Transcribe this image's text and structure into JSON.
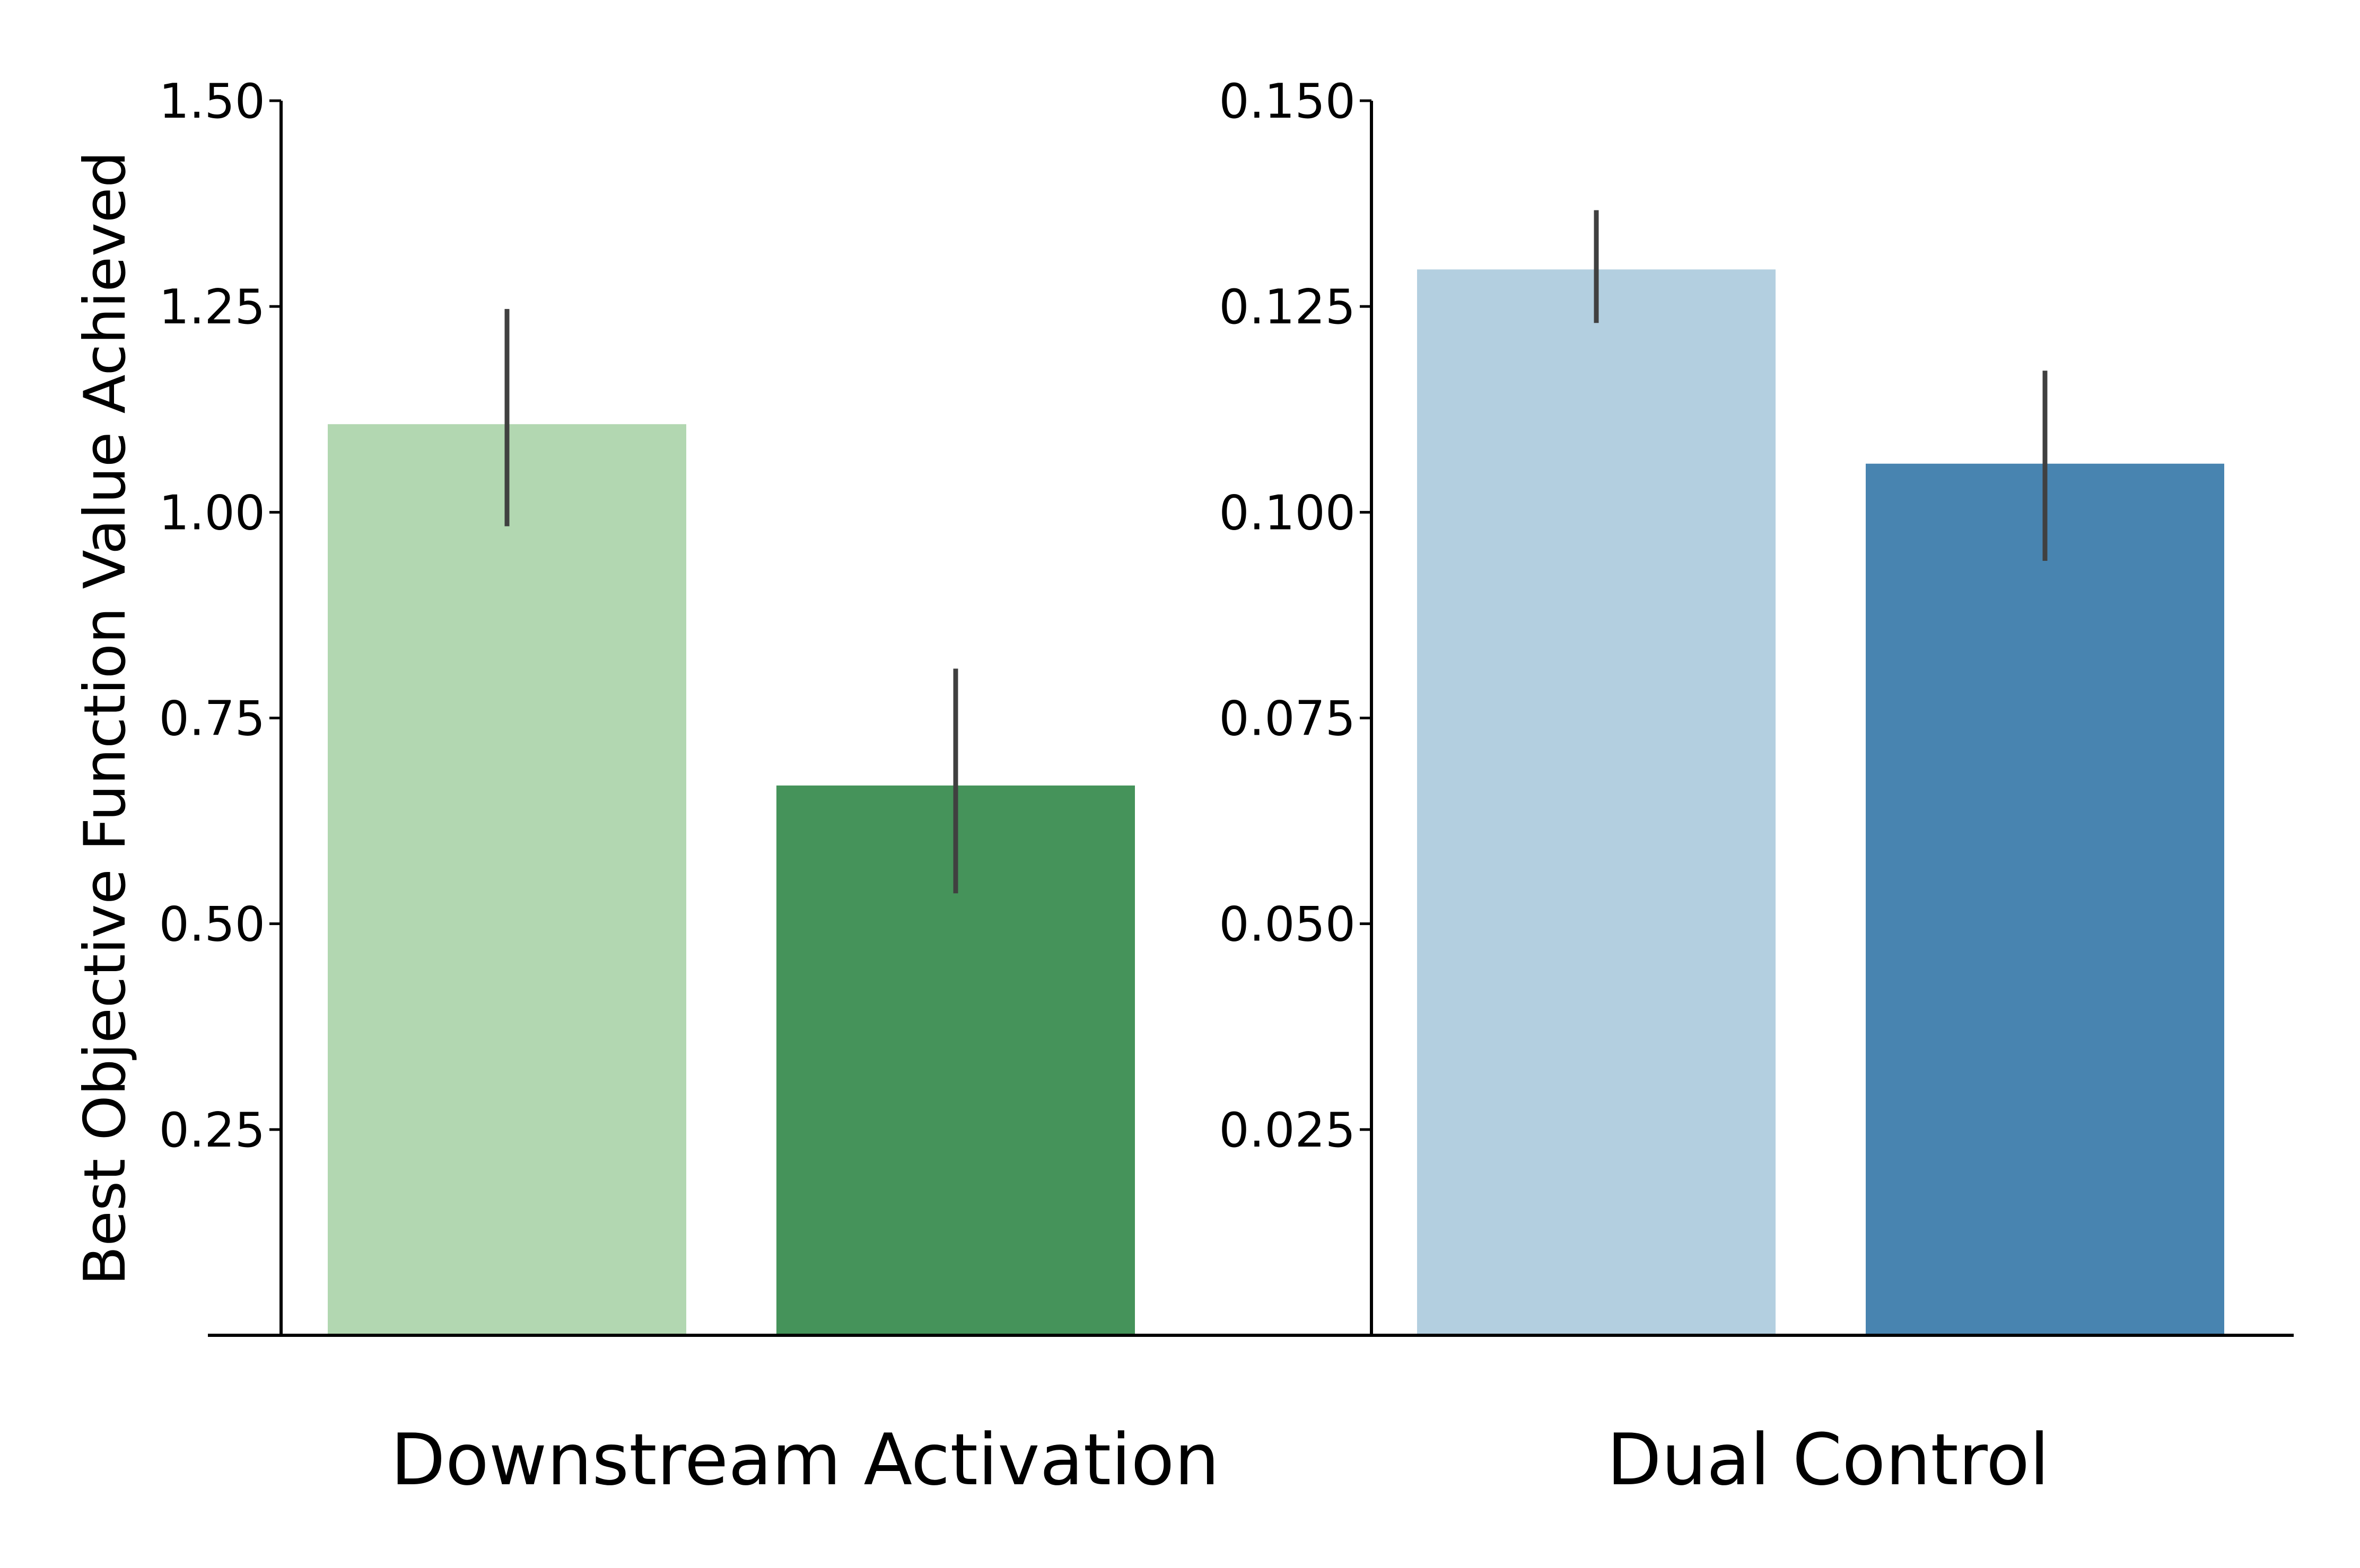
{
  "chart_data": {
    "type": "bar",
    "ylabel": "Best Objective Function Value Achieved",
    "panels": [
      {
        "group_label": "Downstream Activation",
        "ylim": [
          0,
          1.5
        ],
        "yticks": [
          0.25,
          0.5,
          0.75,
          1.0,
          1.25,
          1.5
        ],
        "ytick_labels": [
          "0.25",
          "0.50",
          "0.75",
          "1.00",
          "1.25",
          "1.50"
        ],
        "bars": [
          {
            "value": 1.107,
            "err_low": 0.983,
            "err_high": 1.247,
            "color": "#b2d7b1"
          },
          {
            "value": 0.668,
            "err_low": 0.537,
            "err_high": 0.81,
            "color": "#45935a"
          }
        ]
      },
      {
        "group_label": "Dual Control",
        "ylim": [
          0,
          0.15
        ],
        "yticks": [
          0.025,
          0.05,
          0.075,
          0.1,
          0.125,
          0.15
        ],
        "ytick_labels": [
          "0.025",
          "0.050",
          "0.075",
          "0.100",
          "0.125",
          "0.150"
        ],
        "bars": [
          {
            "value": 0.1295,
            "err_low": 0.123,
            "err_high": 0.1367,
            "color": "#b3cfe0"
          },
          {
            "value": 0.1059,
            "err_low": 0.0941,
            "err_high": 0.1172,
            "color": "#4884b0"
          }
        ]
      }
    ],
    "grid": false,
    "legend": "none"
  }
}
